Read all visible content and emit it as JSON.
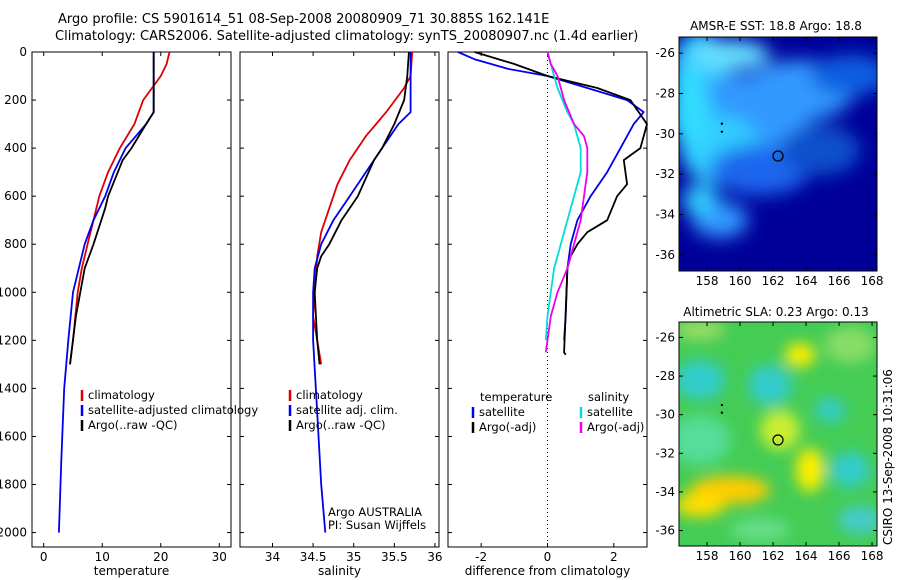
{
  "header": {
    "line1": "Argo profile: CS 5901614_51 08-Sep-2008 20080909_71 30.885S 162.141E",
    "line2": "Climatology: CARS2006. Satellite-adjusted climatology: synTS_20080907.nc (1.4d earlier)"
  },
  "side_stamp": "CSIRO 13-Sep-2008 10:31:06",
  "chart_data": [
    {
      "id": "temperature",
      "type": "line",
      "xlabel": "temperature",
      "xlim": [
        -2,
        32
      ],
      "xticks": [
        0,
        10,
        20,
        30
      ],
      "ylim": [
        2060,
        0
      ],
      "yticks": [
        0,
        200,
        400,
        600,
        800,
        1000,
        1200,
        1400,
        1600,
        1800,
        2000
      ],
      "legend": [
        "climatology",
        "satellite-adjusted climatology",
        "Argo(..raw -QC)"
      ],
      "series": [
        {
          "name": "climatology",
          "color": "#dd0000",
          "x": [
            21.5,
            21,
            20,
            17,
            15.5,
            13,
            11,
            9.5,
            8.5,
            7.5,
            6.5,
            5.8,
            5,
            4.5
          ],
          "y": [
            0,
            50,
            100,
            200,
            300,
            400,
            500,
            600,
            700,
            800,
            900,
            1000,
            1200,
            1300
          ]
        },
        {
          "name": "satellite-adjusted climatology",
          "color": "#0000ee",
          "x": [
            18.8,
            18.8,
            18.8,
            18.8,
            17.5,
            14,
            12,
            10.5,
            8.5,
            7,
            6,
            5,
            4.2,
            3.5,
            3,
            2.6
          ],
          "y": [
            0,
            100,
            200,
            250,
            300,
            400,
            500,
            600,
            700,
            800,
            900,
            1000,
            1200,
            1400,
            1700,
            2000
          ]
        },
        {
          "name": "Argo(..raw -QC)",
          "color": "#000000",
          "x": [
            18.8,
            18.8,
            18.8,
            18.8,
            17.5,
            15,
            13.5,
            11,
            10.5,
            8.5,
            7,
            5.5,
            4.5
          ],
          "y": [
            0,
            100,
            200,
            250,
            300,
            400,
            450,
            600,
            650,
            800,
            900,
            1100,
            1300
          ]
        }
      ]
    },
    {
      "id": "salinity",
      "type": "line",
      "xlabel": "salinity",
      "xlim": [
        33.6,
        36.05
      ],
      "xticks": [
        34,
        34.5,
        35,
        35.5,
        36
      ],
      "ylim": [
        2060,
        0
      ],
      "legend": [
        "climatology",
        "satellite adj. clim.",
        "Argo(..raw -QC)"
      ],
      "annotation": [
        "Argo AUSTRALIA",
        "PI: Susan Wijffels"
      ],
      "series": [
        {
          "name": "climatology",
          "color": "#dd0000",
          "x": [
            35.72,
            35.7,
            35.62,
            35.4,
            35.15,
            34.95,
            34.8,
            34.7,
            34.6,
            34.55,
            34.52,
            34.5,
            34.55,
            34.6
          ],
          "y": [
            0,
            100,
            150,
            250,
            350,
            450,
            550,
            650,
            750,
            850,
            1000,
            1100,
            1200,
            1300
          ]
        },
        {
          "name": "satellite adj. clim.",
          "color": "#0000ee",
          "x": [
            35.7,
            35.7,
            35.7,
            35.7,
            35.55,
            35.35,
            35.15,
            34.95,
            34.75,
            34.6,
            34.52,
            34.5,
            34.5,
            34.55,
            34.6,
            34.65
          ],
          "y": [
            0,
            100,
            200,
            250,
            300,
            400,
            500,
            600,
            700,
            800,
            900,
            1000,
            1200,
            1500,
            1800,
            2000
          ]
        },
        {
          "name": "Argo(..raw -QC)",
          "color": "#000000",
          "x": [
            35.68,
            35.66,
            35.64,
            35.62,
            35.5,
            35.35,
            35.25,
            35.05,
            34.85,
            34.7,
            34.6,
            34.55,
            34.52,
            34.55,
            34.58
          ],
          "y": [
            0,
            100,
            150,
            200,
            300,
            400,
            450,
            600,
            700,
            800,
            850,
            900,
            1000,
            1200,
            1300
          ]
        }
      ]
    },
    {
      "id": "difference",
      "type": "line",
      "xlabel": "difference from climatology",
      "xlim": [
        -3.0,
        3.0
      ],
      "xticks": [
        -2,
        0,
        2
      ],
      "ylim": [
        2060,
        0
      ],
      "legend": [
        {
          "header": "temperature",
          "items": [
            "satellite",
            "Argo(-adj)"
          ]
        },
        {
          "header": "salinity",
          "items": [
            "satellite",
            "Argo(-adj)"
          ]
        }
      ],
      "series": [
        {
          "name": "temperature satellite",
          "color": "#0000ee",
          "x": [
            -2.7,
            -2.2,
            -1.2,
            0,
            1.2,
            2.4,
            2.9,
            2.6,
            2.2,
            1.8,
            1.3,
            0.9,
            0.7,
            0.6,
            0.55,
            0.5
          ],
          "y": [
            0,
            30,
            70,
            100,
            150,
            200,
            250,
            300,
            400,
            500,
            600,
            700,
            800,
            900,
            1100,
            1200
          ]
        },
        {
          "name": "temperature Argo(-adj)",
          "color": "#000000",
          "x": [
            -2.2,
            -1,
            0,
            1.5,
            2.5,
            3.0,
            2.8,
            2.3,
            2.4,
            2.1,
            1.8,
            1.2,
            0.9,
            0.7,
            0.6,
            0.5,
            0.55
          ],
          "y": [
            0,
            50,
            100,
            150,
            200,
            300,
            400,
            450,
            550,
            600,
            700,
            750,
            800,
            850,
            900,
            1250,
            1260
          ]
        },
        {
          "name": "salinity satellite",
          "color": "#00dddd",
          "x": [
            0,
            0.1,
            0.2,
            0.3,
            0.6,
            0.8,
            1.0,
            1.0,
            0.8,
            0.6,
            0.4,
            0.2,
            0.1,
            0,
            -0.05
          ],
          "y": [
            0,
            50,
            100,
            150,
            250,
            300,
            400,
            500,
            600,
            700,
            800,
            900,
            1000,
            1100,
            1200
          ]
        },
        {
          "name": "salinity Argo(-adj)",
          "color": "#ee00ee",
          "x": [
            0,
            0.1,
            0.3,
            0.5,
            0.8,
            1.1,
            1.2,
            1.2,
            1.1,
            1.0,
            0.8,
            0.6,
            0.3,
            0.1,
            0,
            -0.05
          ],
          "y": [
            0,
            50,
            100,
            200,
            300,
            350,
            400,
            500,
            600,
            700,
            800,
            900,
            1000,
            1100,
            1200,
            1250
          ]
        }
      ]
    },
    {
      "id": "sst-map",
      "type": "heatmap",
      "title": "AMSR-E SST: 18.8 Argo: 18.8",
      "xlim": [
        156.3,
        168.3
      ],
      "xticks": [
        158,
        160,
        162,
        164,
        166,
        168
      ],
      "ylim": [
        -36.8,
        -25.2
      ],
      "yticks": [
        -26,
        -28,
        -30,
        -32,
        -34,
        -36
      ],
      "marker": {
        "lon": 162.14,
        "lat": -30.89
      },
      "colors": [
        "#000099",
        "#1a33cc",
        "#0f5fe0",
        "#3399ff",
        "#33ccff"
      ]
    },
    {
      "id": "sla-map",
      "type": "heatmap",
      "title": "Altimetric SLA: 0.23 Argo: 0.13",
      "xlim": [
        156.3,
        168.3
      ],
      "xticks": [
        158,
        160,
        162,
        164,
        166,
        168
      ],
      "ylim": [
        -36.8,
        -25.2
      ],
      "yticks": [
        -26,
        -28,
        -30,
        -32,
        -34,
        -36
      ],
      "marker": {
        "lon": 162.14,
        "lat": -30.89
      },
      "colors": [
        "#33cc66",
        "#33cccc",
        "#66dd88",
        "#ccee33",
        "#ffff00",
        "#ffcc00"
      ]
    }
  ]
}
